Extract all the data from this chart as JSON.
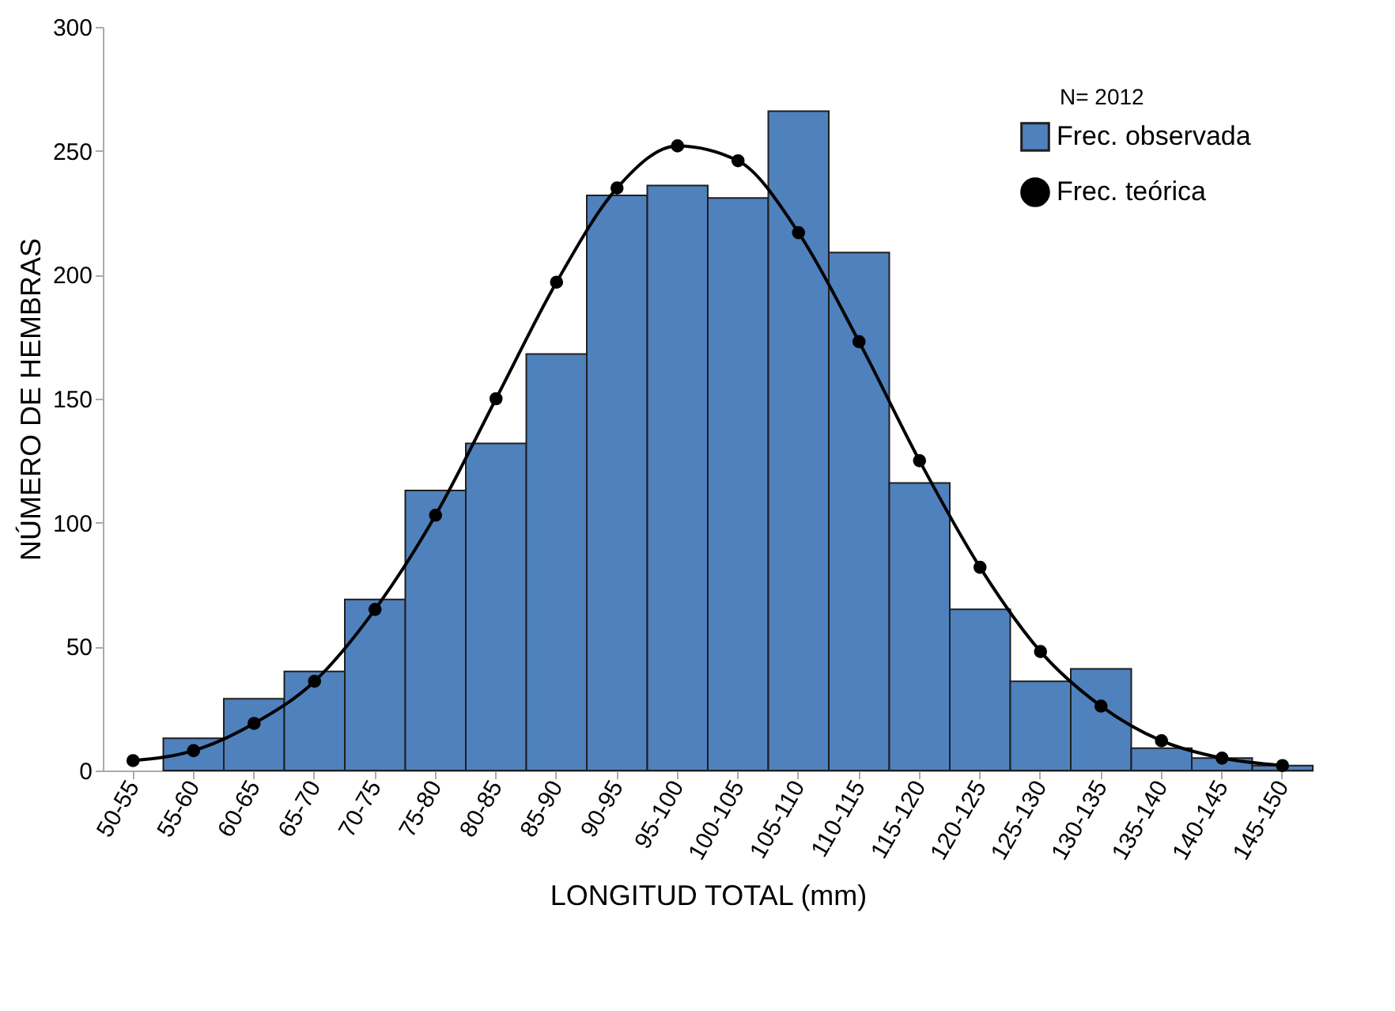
{
  "chart_data": {
    "type": "bar",
    "xlabel": "LONGITUD TOTAL (mm)",
    "ylabel": "NÚMERO DE HEMBRAS",
    "categories": [
      "50-55",
      "55-60",
      "60-65",
      "65-70",
      "70-75",
      "75-80",
      "80-85",
      "85-90",
      "90-95",
      "95-100",
      "100-105",
      "105-110",
      "110-115",
      "115-120",
      "120-125",
      "125-130",
      "130-135",
      "135-140",
      "140-145",
      "145-150"
    ],
    "series": [
      {
        "name": "Frec. observada",
        "color": "#4f81bd",
        "values": [
          null,
          13,
          29,
          40,
          69,
          113,
          132,
          168,
          232,
          236,
          231,
          266,
          209,
          116,
          65,
          36,
          41,
          9,
          5,
          2
        ]
      },
      {
        "name": "Frec. teórica",
        "type": "line",
        "color": "#000000",
        "marker": "circle",
        "values": [
          4,
          8,
          19,
          36,
          65,
          103,
          150,
          197,
          235,
          252,
          246,
          217,
          173,
          125,
          82,
          48,
          26,
          12,
          5,
          2
        ]
      }
    ],
    "ylim": [
      0,
      300
    ],
    "yticks": [
      0,
      50,
      100,
      150,
      200,
      250,
      300
    ],
    "grid": false,
    "legend": "top right",
    "annotations": [
      "N= 2012"
    ]
  }
}
